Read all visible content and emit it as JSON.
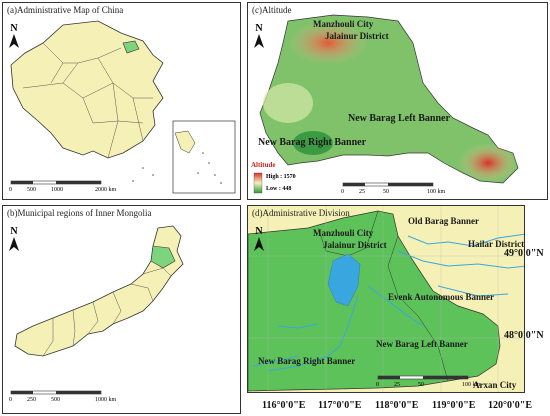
{
  "panel_a": {
    "title": "(a)Administrative Map of China",
    "north": "N",
    "scale": [
      "0",
      "500",
      "1000",
      "2000 km"
    ]
  },
  "panel_b": {
    "title": "(b)Municipal regions of Inner Mongolia",
    "north": "N",
    "scale": [
      "0",
      "250",
      "500",
      "1000 km"
    ]
  },
  "panel_c": {
    "title": "(c)Altitude",
    "north": "N",
    "labels": {
      "manzhouli": "Manzhouli City",
      "jalainur": "Jalainur District",
      "left_banner": "New Barag Left Banner",
      "right_banner": "New Barag Right Banner"
    },
    "legend": {
      "title": "Altitude",
      "high": "High : 1570",
      "low": "Low : 448"
    },
    "scale": [
      "0",
      "25",
      "50",
      "100 km"
    ]
  },
  "panel_d": {
    "title": "(d)Administrative Division",
    "north": "N",
    "labels": {
      "manzhouli": "Manzhouli City",
      "jalainur": "Jalainur District",
      "old_barag": "Old Barag Banner",
      "hailar": "Hailar District",
      "evenk": "Evenk Autonomous Banner",
      "left_banner": "New Barag Left Banner",
      "right_banner": "New Barag Right Banner",
      "arxan": "Arxan City"
    },
    "lat_ticks": [
      "49°0'0\"N",
      "48°0'0\"N"
    ],
    "lon_ticks": [
      "116°0'0\"E",
      "117°0'0\"E",
      "118°0'0\"E",
      "119°0'0\"E",
      "120°0'0\"E"
    ],
    "scale": [
      "0",
      "25",
      "50",
      "100 km"
    ]
  },
  "colors": {
    "land": "#f5f0b5",
    "highlight": "#7ed37e",
    "study_green": "#5dc25a",
    "water": "#3aa6e0",
    "border": "#333333"
  }
}
